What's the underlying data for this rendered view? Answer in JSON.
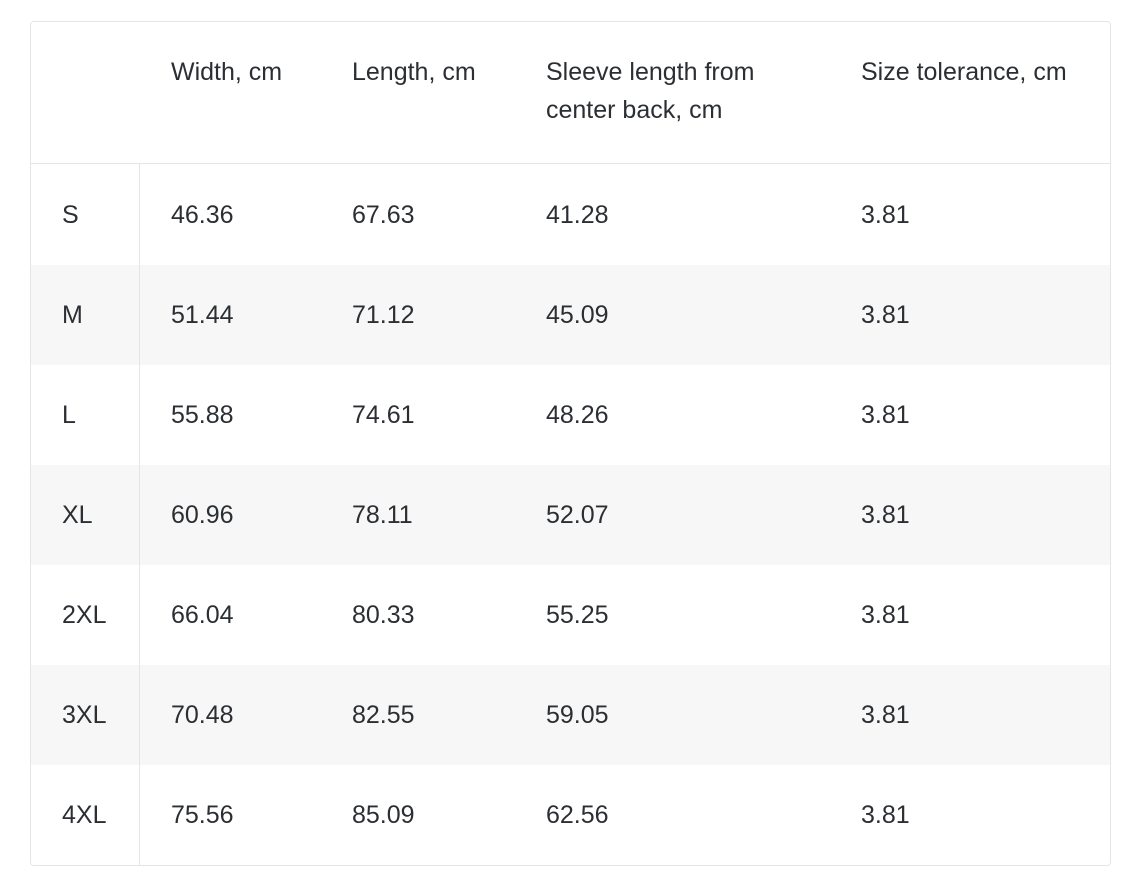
{
  "table": {
    "headers": {
      "size": "",
      "width": "Width, cm",
      "length": "Length, cm",
      "sleeve": "Sleeve length from center back, cm",
      "tolerance": "Size tolerance, cm"
    },
    "rows": [
      {
        "size": "S",
        "width": "46.36",
        "length": "67.63",
        "sleeve": "41.28",
        "tolerance": "3.81"
      },
      {
        "size": "M",
        "width": "51.44",
        "length": "71.12",
        "sleeve": "45.09",
        "tolerance": "3.81"
      },
      {
        "size": "L",
        "width": "55.88",
        "length": "74.61",
        "sleeve": "48.26",
        "tolerance": "3.81"
      },
      {
        "size": "XL",
        "width": "60.96",
        "length": "78.11",
        "sleeve": "52.07",
        "tolerance": "3.81"
      },
      {
        "size": "2XL",
        "width": "66.04",
        "length": "80.33",
        "sleeve": "55.25",
        "tolerance": "3.81"
      },
      {
        "size": "3XL",
        "width": "70.48",
        "length": "82.55",
        "sleeve": "59.05",
        "tolerance": "3.81"
      },
      {
        "size": "4XL",
        "width": "75.56",
        "length": "85.09",
        "sleeve": "62.56",
        "tolerance": "3.81"
      }
    ]
  }
}
